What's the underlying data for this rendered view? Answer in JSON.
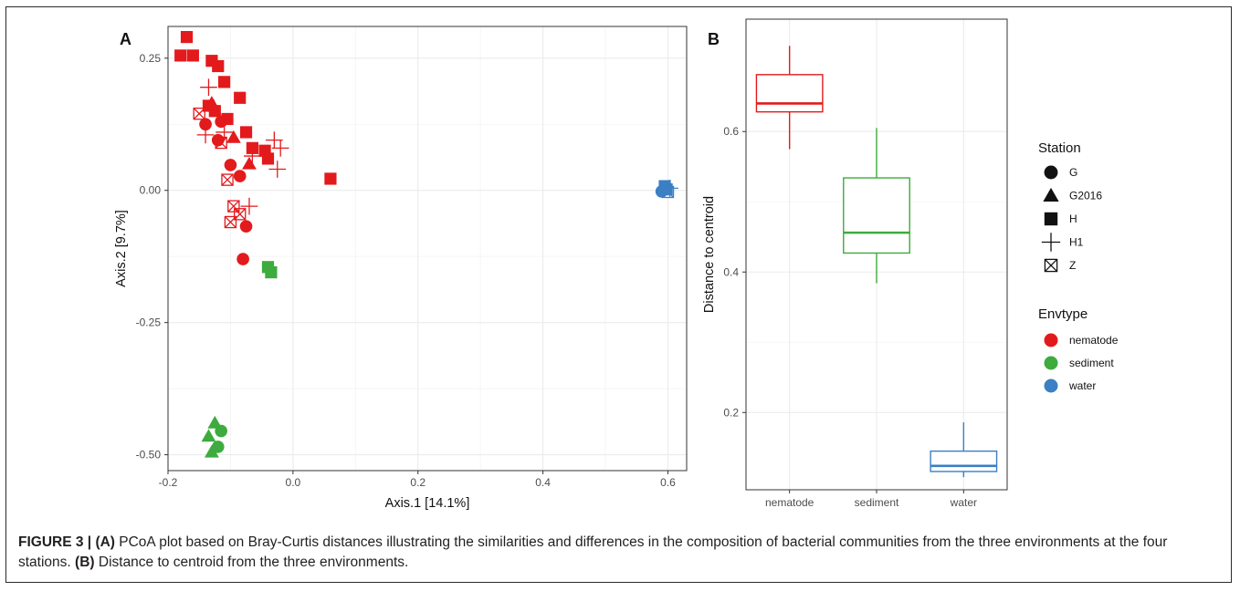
{
  "colors": {
    "nematode": "#e31a1c",
    "sediment": "#3dab3d",
    "water": "#3b7fc4",
    "grid": "#ebebeb",
    "panel_border": "#333333"
  },
  "chart_data": [
    {
      "panel_label": "A",
      "type": "scatter",
      "xlabel": "Axis.1   [14.1%]",
      "ylabel": "Axis.2   [9.7%]",
      "xlim": [
        -0.2,
        0.63
      ],
      "ylim": [
        -0.53,
        0.31
      ],
      "xticks": [
        -0.2,
        0.0,
        0.2,
        0.4,
        0.6
      ],
      "xtick_labels": [
        "-0.2",
        "0.0",
        "0.2",
        "0.4",
        "0.6"
      ],
      "yticks": [
        -0.5,
        -0.25,
        0.0,
        0.25
      ],
      "ytick_labels": [
        "-0.50",
        "-0.25",
        "0.00",
        "0.25"
      ],
      "grid": true,
      "series": [
        {
          "name": "nematode",
          "points": [
            {
              "x": -0.17,
              "y": 0.29,
              "shape": "H"
            },
            {
              "x": -0.18,
              "y": 0.255,
              "shape": "H"
            },
            {
              "x": -0.16,
              "y": 0.255,
              "shape": "H"
            },
            {
              "x": -0.13,
              "y": 0.245,
              "shape": "H"
            },
            {
              "x": -0.12,
              "y": 0.235,
              "shape": "H"
            },
            {
              "x": -0.11,
              "y": 0.205,
              "shape": "H"
            },
            {
              "x": -0.085,
              "y": 0.175,
              "shape": "H"
            },
            {
              "x": -0.135,
              "y": 0.16,
              "shape": "H"
            },
            {
              "x": -0.125,
              "y": 0.15,
              "shape": "H"
            },
            {
              "x": -0.105,
              "y": 0.135,
              "shape": "H"
            },
            {
              "x": -0.075,
              "y": 0.11,
              "shape": "H"
            },
            {
              "x": -0.065,
              "y": 0.08,
              "shape": "H"
            },
            {
              "x": -0.045,
              "y": 0.075,
              "shape": "H"
            },
            {
              "x": -0.04,
              "y": 0.06,
              "shape": "H"
            },
            {
              "x": 0.06,
              "y": 0.022,
              "shape": "H"
            },
            {
              "x": -0.13,
              "y": 0.165,
              "shape": "G2016"
            },
            {
              "x": -0.095,
              "y": 0.1,
              "shape": "G2016"
            },
            {
              "x": -0.07,
              "y": 0.05,
              "shape": "G2016"
            },
            {
              "x": -0.14,
              "y": 0.125,
              "shape": "G"
            },
            {
              "x": -0.115,
              "y": 0.13,
              "shape": "G"
            },
            {
              "x": -0.12,
              "y": 0.095,
              "shape": "G"
            },
            {
              "x": -0.1,
              "y": 0.048,
              "shape": "G"
            },
            {
              "x": -0.085,
              "y": 0.027,
              "shape": "G"
            },
            {
              "x": -0.075,
              "y": -0.068,
              "shape": "G"
            },
            {
              "x": -0.08,
              "y": -0.13,
              "shape": "G"
            },
            {
              "x": -0.135,
              "y": 0.195,
              "shape": "H1"
            },
            {
              "x": -0.14,
              "y": 0.105,
              "shape": "H1"
            },
            {
              "x": -0.11,
              "y": 0.11,
              "shape": "H1"
            },
            {
              "x": -0.03,
              "y": 0.095,
              "shape": "H1"
            },
            {
              "x": -0.02,
              "y": 0.08,
              "shape": "H1"
            },
            {
              "x": -0.025,
              "y": 0.04,
              "shape": "H1"
            },
            {
              "x": -0.065,
              "y": 0.065,
              "shape": "H1"
            },
            {
              "x": -0.07,
              "y": -0.03,
              "shape": "H1"
            },
            {
              "x": -0.15,
              "y": 0.145,
              "shape": "Z"
            },
            {
              "x": -0.115,
              "y": 0.09,
              "shape": "Z"
            },
            {
              "x": -0.105,
              "y": 0.02,
              "shape": "Z"
            },
            {
              "x": -0.095,
              "y": -0.03,
              "shape": "Z"
            },
            {
              "x": -0.085,
              "y": -0.045,
              "shape": "Z"
            },
            {
              "x": -0.1,
              "y": -0.06,
              "shape": "Z"
            }
          ]
        },
        {
          "name": "sediment",
          "points": [
            {
              "x": -0.04,
              "y": -0.145,
              "shape": "H"
            },
            {
              "x": -0.035,
              "y": -0.155,
              "shape": "H"
            },
            {
              "x": -0.125,
              "y": -0.44,
              "shape": "G2016"
            },
            {
              "x": -0.135,
              "y": -0.465,
              "shape": "G2016"
            },
            {
              "x": -0.13,
              "y": -0.495,
              "shape": "G2016"
            },
            {
              "x": -0.115,
              "y": -0.455,
              "shape": "G"
            },
            {
              "x": -0.12,
              "y": -0.485,
              "shape": "G"
            }
          ]
        },
        {
          "name": "water",
          "points": [
            {
              "x": 0.595,
              "y": 0.008,
              "shape": "H"
            },
            {
              "x": 0.598,
              "y": 0.002,
              "shape": "H"
            },
            {
              "x": 0.6,
              "y": -0.003,
              "shape": "Z"
            },
            {
              "x": 0.59,
              "y": -0.002,
              "shape": "G"
            },
            {
              "x": 0.603,
              "y": 0.004,
              "shape": "H1"
            }
          ]
        }
      ]
    },
    {
      "panel_label": "B",
      "type": "box",
      "xlabel": "",
      "ylabel": "Distance to centroid",
      "categories": [
        "nematode",
        "sediment",
        "water"
      ],
      "ylim": [
        0.09,
        0.76
      ],
      "yticks": [
        0.2,
        0.4,
        0.6
      ],
      "ytick_labels": [
        "0.2",
        "0.4",
        "0.6"
      ],
      "grid": true,
      "boxes": [
        {
          "category": "nematode",
          "min": 0.575,
          "q1": 0.628,
          "median": 0.64,
          "q3": 0.681,
          "max": 0.722,
          "color": "#e31a1c"
        },
        {
          "category": "sediment",
          "min": 0.384,
          "q1": 0.427,
          "median": 0.456,
          "q3": 0.534,
          "max": 0.605,
          "color": "#3dab3d"
        },
        {
          "category": "water",
          "min": 0.108,
          "q1": 0.116,
          "median": 0.124,
          "q3": 0.145,
          "max": 0.186,
          "color": "#3b7fc4"
        }
      ]
    }
  ],
  "legend": {
    "station_title": "Station",
    "station_items": [
      {
        "label": "G",
        "shape": "G"
      },
      {
        "label": "G2016",
        "shape": "G2016"
      },
      {
        "label": "H",
        "shape": "H"
      },
      {
        "label": "H1",
        "shape": "H1"
      },
      {
        "label": "Z",
        "shape": "Z"
      }
    ],
    "envtype_title": "Envtype",
    "envtype_items": [
      {
        "label": "nematode",
        "color": "#e31a1c"
      },
      {
        "label": "sediment",
        "color": "#3dab3d"
      },
      {
        "label": "water",
        "color": "#3b7fc4"
      }
    ]
  },
  "caption": {
    "label": "FIGURE 3 | ",
    "part_a_tag": "(A)",
    "part_a_text": " PCoA plot based on Bray-Curtis distances illustrating the similarities and differences in the composition of bacterial communities from the three environments at the four stations. ",
    "part_b_tag": "(B)",
    "part_b_text": " Distance to centroid from the three environments."
  }
}
